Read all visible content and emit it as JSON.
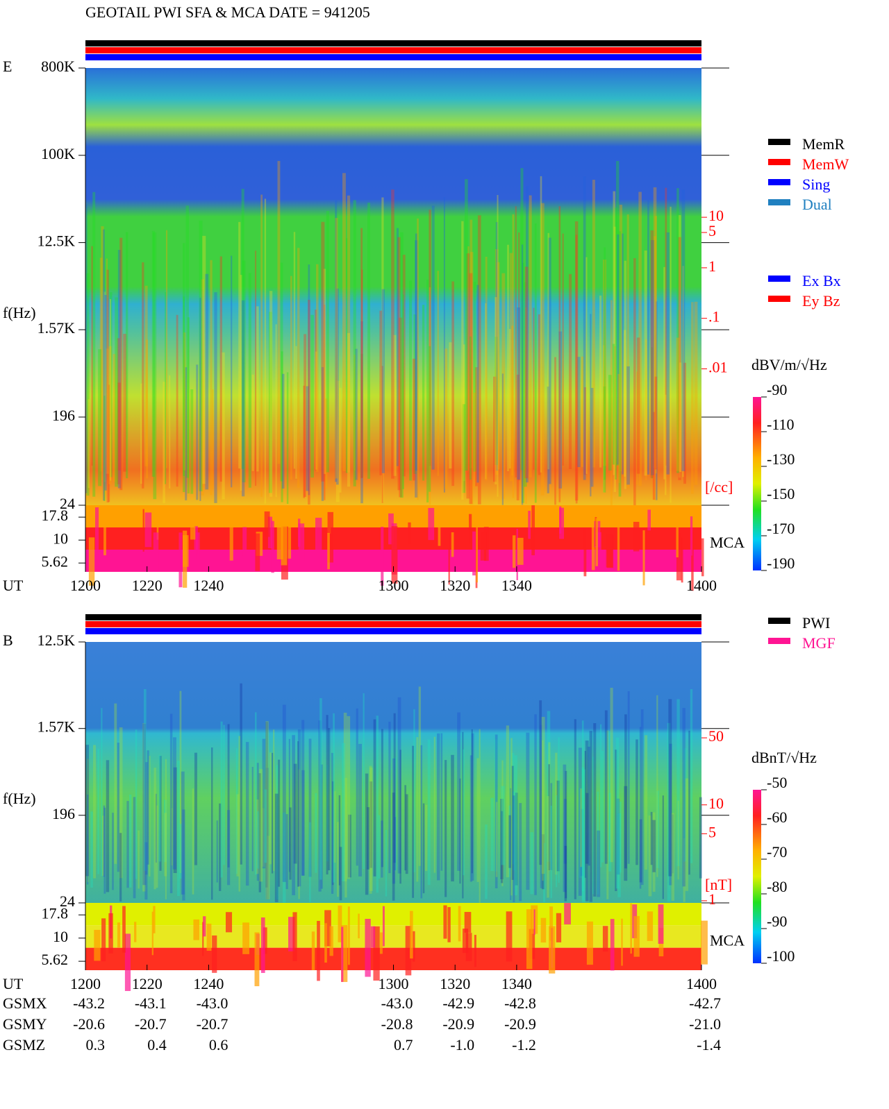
{
  "chart_data": [
    {
      "type": "spectrogram",
      "title": "GEOTAIL  PWI SFA & MCA   DATE = 941205",
      "panel_label": "E",
      "y_label": "f(Hz)",
      "x_label": "UT",
      "xlim": [
        1200,
        1400
      ],
      "xticks": [
        1200,
        1220,
        1240,
        1300,
        1320,
        1340,
        1400
      ],
      "log_y": true,
      "ylim": [
        24,
        800000
      ],
      "yticks": [
        {
          "value": 800000,
          "label": "800K"
        },
        {
          "value": 100000,
          "label": "100K"
        },
        {
          "value": 12500,
          "label": "12.5K"
        },
        {
          "value": 1570,
          "label": "1.57K"
        },
        196,
        24
      ],
      "mca_label": "MCA",
      "mca_ylim": [
        4.5,
        24
      ],
      "mca_yticks": [
        17.8,
        10,
        5.62
      ],
      "y2lim": [
        2e-05,
        9000
      ],
      "y2ticks": [
        10,
        5,
        1,
        {
          "value": 0.1,
          "label": ".1"
        },
        {
          "value": 0.01,
          "label": ".01"
        }
      ],
      "y2_label": "[/cc]",
      "y2_color": "#ff0000",
      "colorbar": {
        "label": "dBV/m/√Hz",
        "lim": [
          -190,
          -90
        ],
        "ticks": [
          -90,
          -110,
          -130,
          -150,
          -170,
          -190
        ]
      },
      "legends": [
        [
          {
            "name": "MemR",
            "color": "#000000"
          },
          {
            "name": "MemW",
            "color": "#ff0000"
          },
          {
            "name": "Sing",
            "color": "#0000ff"
          },
          {
            "name": "Dual",
            "color": "#2080c0"
          }
        ],
        [
          {
            "name": "Ex Bx",
            "color": "#0000ff"
          },
          {
            "name": "Ey Bz",
            "color": "#ff0000"
          }
        ]
      ]
    },
    {
      "type": "spectrogram",
      "panel_label": "B",
      "y_label": "f(Hz)",
      "x_label": "UT",
      "xlim": [
        1200,
        1400
      ],
      "xticks": [
        1200,
        1220,
        1240,
        1300,
        1320,
        1340,
        1400
      ],
      "log_y": true,
      "ylim": [
        24,
        12500
      ],
      "yticks": [
        {
          "value": 12500,
          "label": "12.5K"
        },
        {
          "value": 1570,
          "label": "1.57K"
        },
        196,
        24
      ],
      "mca_label": "MCA",
      "mca_ylim": [
        4.5,
        24
      ],
      "mca_yticks": [
        17.8,
        10,
        5.62
      ],
      "y2lim": [
        0.95,
        500
      ],
      "y2ticks": [
        50,
        10,
        5,
        1
      ],
      "y2_label": "[nT]",
      "y2_color": "#ff0000",
      "colorbar": {
        "label": "dBnT/√Hz",
        "lim": [
          -100,
          -50
        ],
        "ticks": [
          -50,
          -60,
          -70,
          -80,
          -90,
          -100
        ]
      },
      "legends": [
        [
          {
            "name": "PWI",
            "color": "#000000"
          },
          {
            "name": "MGF",
            "color": "#ff1493"
          }
        ]
      ]
    }
  ],
  "orbit_table": {
    "rows": [
      {
        "name": "GSMX",
        "values": [
          "-43.2",
          "-43.1",
          "-43.0",
          "-43.0",
          "-42.9",
          "-42.8",
          "-42.7"
        ]
      },
      {
        "name": "GSMY",
        "values": [
          "-20.6",
          "-20.7",
          "-20.7",
          "-20.8",
          "-20.9",
          "-20.9",
          "-21.0"
        ]
      },
      {
        "name": "GSMZ",
        "values": [
          "0.3",
          "0.4",
          "0.6",
          "0.7",
          "-1.0",
          "-1.2",
          "-1.4"
        ]
      }
    ]
  }
}
